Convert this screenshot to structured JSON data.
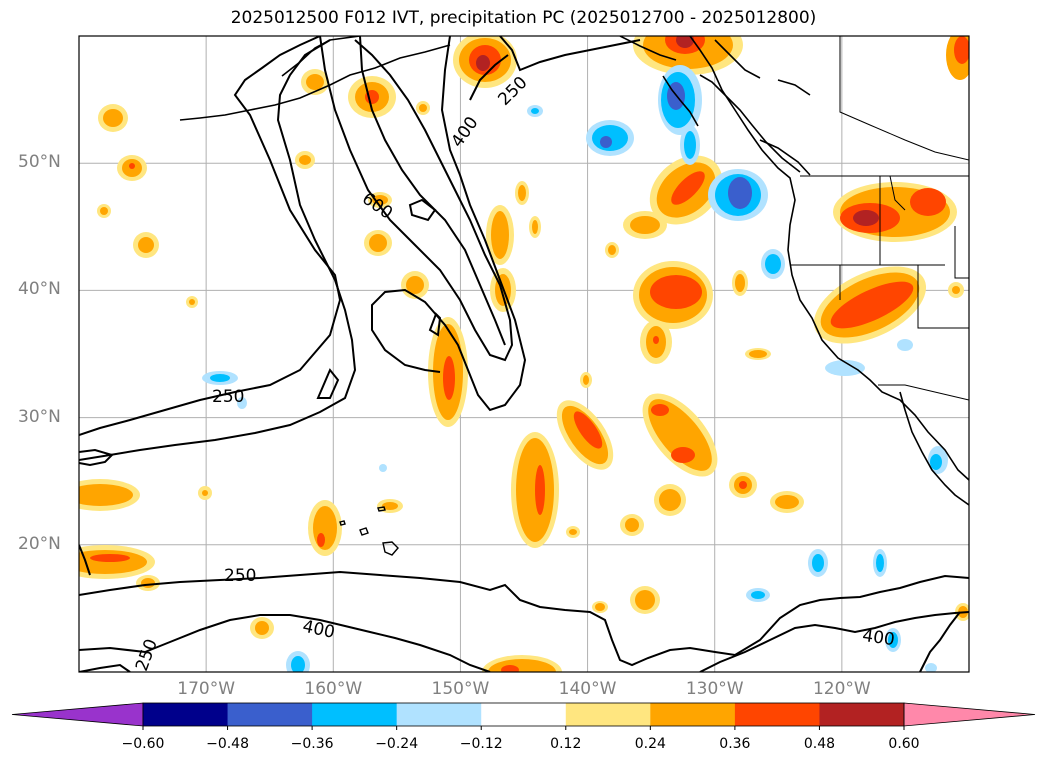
{
  "title": "2025012500 F012 IVT, precipitation PC (2025012700 - 2025012800)",
  "map": {
    "lon_range": [
      -180,
      -110
    ],
    "lat_range": [
      10,
      60
    ],
    "lat_ticks": [
      {
        "value": 20,
        "label": "20°N"
      },
      {
        "value": 30,
        "label": "30°N"
      },
      {
        "value": 40,
        "label": "40°N"
      },
      {
        "value": 50,
        "label": "50°N"
      }
    ],
    "lon_ticks": [
      {
        "value": -170,
        "label": "170°W"
      },
      {
        "value": -160,
        "label": "160°W"
      },
      {
        "value": -150,
        "label": "150°W"
      },
      {
        "value": -140,
        "label": "140°W"
      },
      {
        "value": -130,
        "label": "130°W"
      },
      {
        "value": -120,
        "label": "120°W"
      }
    ],
    "gridlines": true,
    "contour_labels": [
      "250",
      "400",
      "600",
      "250",
      "250",
      "400",
      "250",
      "400"
    ]
  },
  "colorbar": {
    "extend": "both",
    "colors": [
      "#9933cc",
      "#00008b",
      "#3a5fcd",
      "#00bfff",
      "#b0e2ff",
      "#ffffff",
      "#ffe680",
      "#ffa500",
      "#ff4500",
      "#b22222",
      "#ff88aa"
    ],
    "tick_labels": [
      "−0.60",
      "−0.48",
      "−0.36",
      "−0.24",
      "−0.12",
      "0.12",
      "0.24",
      "0.36",
      "0.48",
      "0.60"
    ]
  }
}
